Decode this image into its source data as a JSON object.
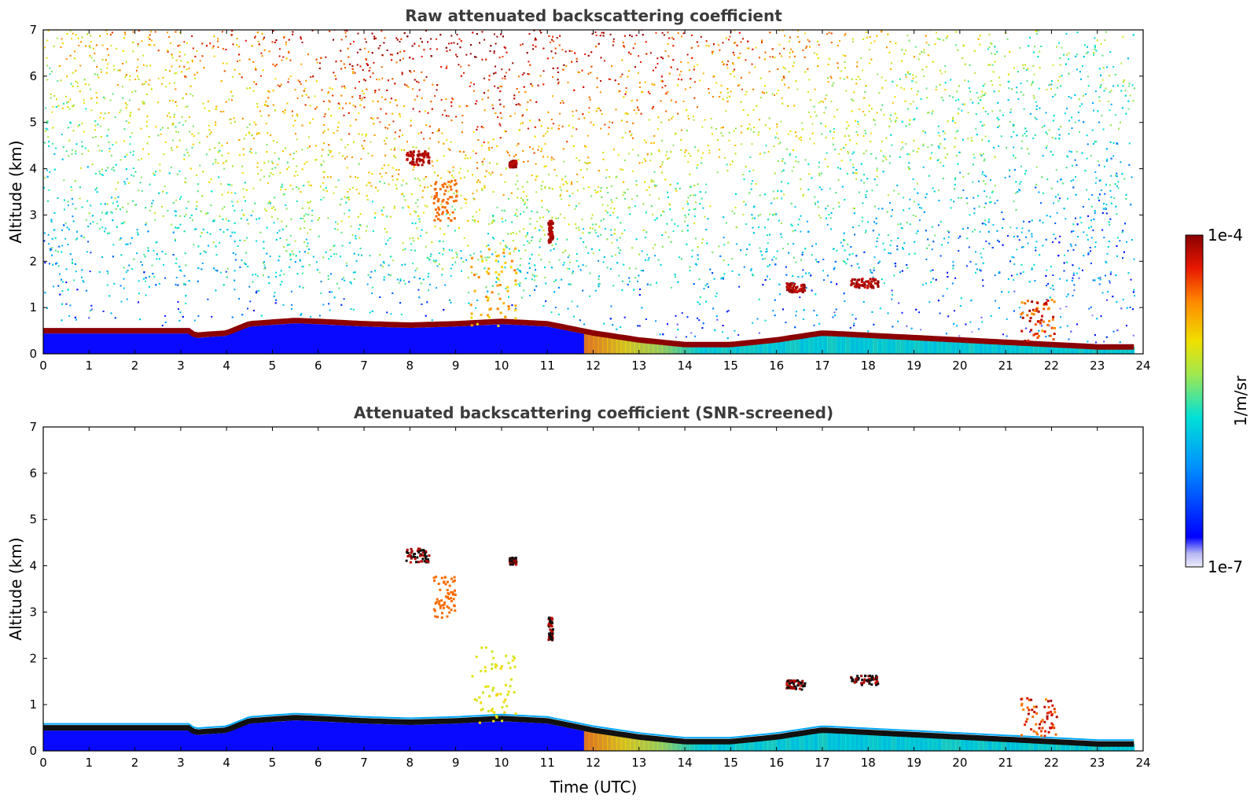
{
  "chart_data": [
    {
      "type": "heatmap",
      "title": "Raw attenuated backscattering coefficient",
      "xlabel": "",
      "ylabel": "Altitude (km)",
      "xlim": [
        0,
        24
      ],
      "ylim": [
        0,
        7
      ],
      "x_ticks": [
        "0",
        "1",
        "2",
        "3",
        "4",
        "5",
        "6",
        "7",
        "8",
        "9",
        "10",
        "11",
        "12",
        "13",
        "14",
        "15",
        "16",
        "17",
        "18",
        "19",
        "20",
        "21",
        "22",
        "23",
        "24"
      ],
      "y_ticks": [
        "0",
        "1",
        "2",
        "3",
        "4",
        "5",
        "6",
        "7"
      ],
      "boundary_layer_top_km": [
        [
          0,
          0.5
        ],
        [
          3.2,
          0.5
        ],
        [
          3.3,
          0.4
        ],
        [
          4,
          0.45
        ],
        [
          4.5,
          0.65
        ],
        [
          5.5,
          0.72
        ],
        [
          6,
          0.7
        ],
        [
          7,
          0.65
        ],
        [
          8,
          0.62
        ],
        [
          9,
          0.65
        ],
        [
          10,
          0.7
        ],
        [
          11,
          0.65
        ],
        [
          12,
          0.45
        ],
        [
          13,
          0.3
        ],
        [
          14,
          0.2
        ],
        [
          15,
          0.2
        ],
        [
          16,
          0.3
        ],
        [
          17,
          0.45
        ],
        [
          18,
          0.4
        ],
        [
          19,
          0.35
        ],
        [
          20,
          0.3
        ],
        [
          21,
          0.25
        ],
        [
          22,
          0.2
        ],
        [
          23,
          0.15
        ],
        [
          23.8,
          0.15
        ]
      ],
      "cloud_features": [
        {
          "time": [
            7.9,
            8.4
          ],
          "altitude_km": [
            4.1,
            4.4
          ]
        },
        {
          "time": [
            10.15,
            10.3
          ],
          "altitude_km": [
            4.05,
            4.2
          ]
        },
        {
          "time": [
            8.5,
            9.0
          ],
          "altitude_km": [
            2.9,
            3.8
          ]
        },
        {
          "time": [
            11.0,
            11.1
          ],
          "altitude_km": [
            2.4,
            2.9
          ]
        },
        {
          "time": [
            9.3,
            10.3
          ],
          "altitude_km": [
            0.6,
            2.3
          ]
        },
        {
          "time": [
            16.2,
            16.6
          ],
          "altitude_km": [
            1.35,
            1.55
          ]
        },
        {
          "time": [
            17.6,
            18.2
          ],
          "altitude_km": [
            1.45,
            1.65
          ]
        },
        {
          "time": [
            21.3,
            22.1
          ],
          "altitude_km": [
            0.3,
            1.2
          ]
        }
      ]
    },
    {
      "type": "heatmap",
      "title": "Attenuated backscattering coefficient (SNR-screened)",
      "xlabel": "Time (UTC)",
      "ylabel": "Altitude (km)",
      "xlim": [
        0,
        24
      ],
      "ylim": [
        0,
        7
      ],
      "x_ticks": [
        "0",
        "1",
        "2",
        "3",
        "4",
        "5",
        "6",
        "7",
        "8",
        "9",
        "10",
        "11",
        "12",
        "13",
        "14",
        "15",
        "16",
        "17",
        "18",
        "19",
        "20",
        "21",
        "22",
        "23",
        "24"
      ],
      "y_ticks": [
        "0",
        "1",
        "2",
        "3",
        "4",
        "5",
        "6",
        "7"
      ]
    }
  ],
  "colorbar": {
    "label": "1/m/sr",
    "max_label": "1e-4",
    "min_label": "1e-7",
    "scale": "log",
    "colormap": [
      "#e8e8f8",
      "#0000ff",
      "#00aaff",
      "#00e5d0",
      "#a8e84a",
      "#f5e000",
      "#ff8800",
      "#e01000",
      "#8b0000"
    ]
  }
}
